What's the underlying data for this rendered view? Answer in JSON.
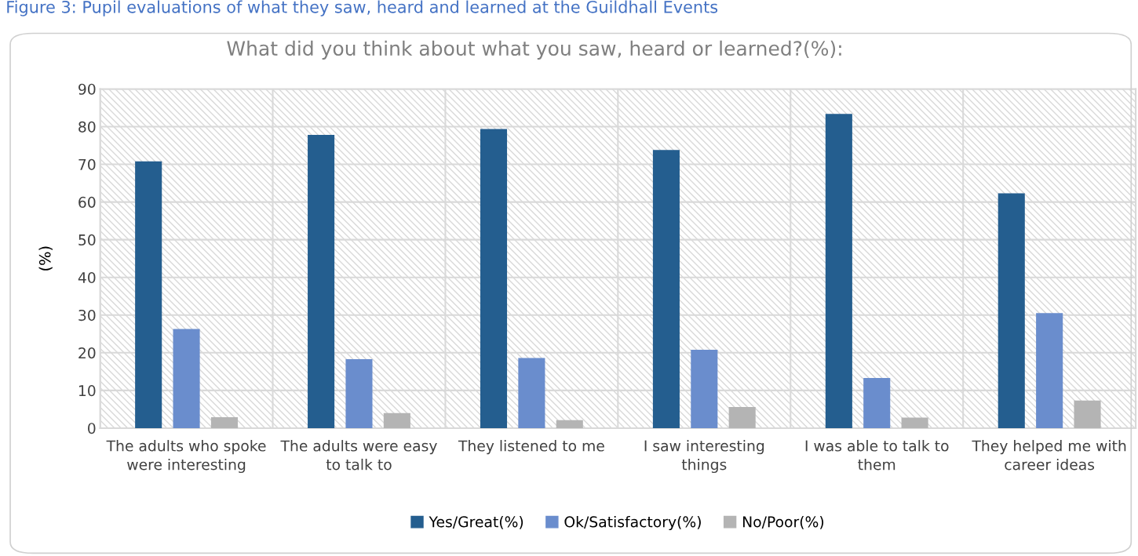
{
  "chart_data": {
    "type": "bar",
    "title": "What did you think about what you saw, heard or learned?(%):",
    "ylabel": "(%)",
    "annotations": [
      "Figure 3: Pupil evaluations of what they saw, heard and learned at the Guildhall Events"
    ],
    "categories": [
      "The adults who spoke were interesting",
      "The adults were easy to talk to",
      "They listened to me",
      "I saw interesting things",
      "I was able to talk to them",
      "They helped me with career ideas"
    ],
    "series": [
      {
        "name": "Yes/Great(%)",
        "color": "#245e8f",
        "values": [
          70.8,
          77.8,
          79.4,
          73.8,
          83.4,
          62.3
        ]
      },
      {
        "name": "Ok/Satisfactory(%)",
        "color": "#6a8dcd",
        "values": [
          26.3,
          18.3,
          18.6,
          20.8,
          13.3,
          30.5
        ]
      },
      {
        "name": "No/Poor(%)",
        "color": "#b4b4b4",
        "values": [
          2.9,
          4.0,
          2.1,
          5.6,
          2.8,
          7.3
        ]
      }
    ],
    "ylim": [
      0,
      90
    ],
    "yticks": [
      0,
      10,
      20,
      30,
      40,
      50,
      60,
      70,
      80,
      90
    ],
    "grid": true,
    "legend": "bottom"
  }
}
